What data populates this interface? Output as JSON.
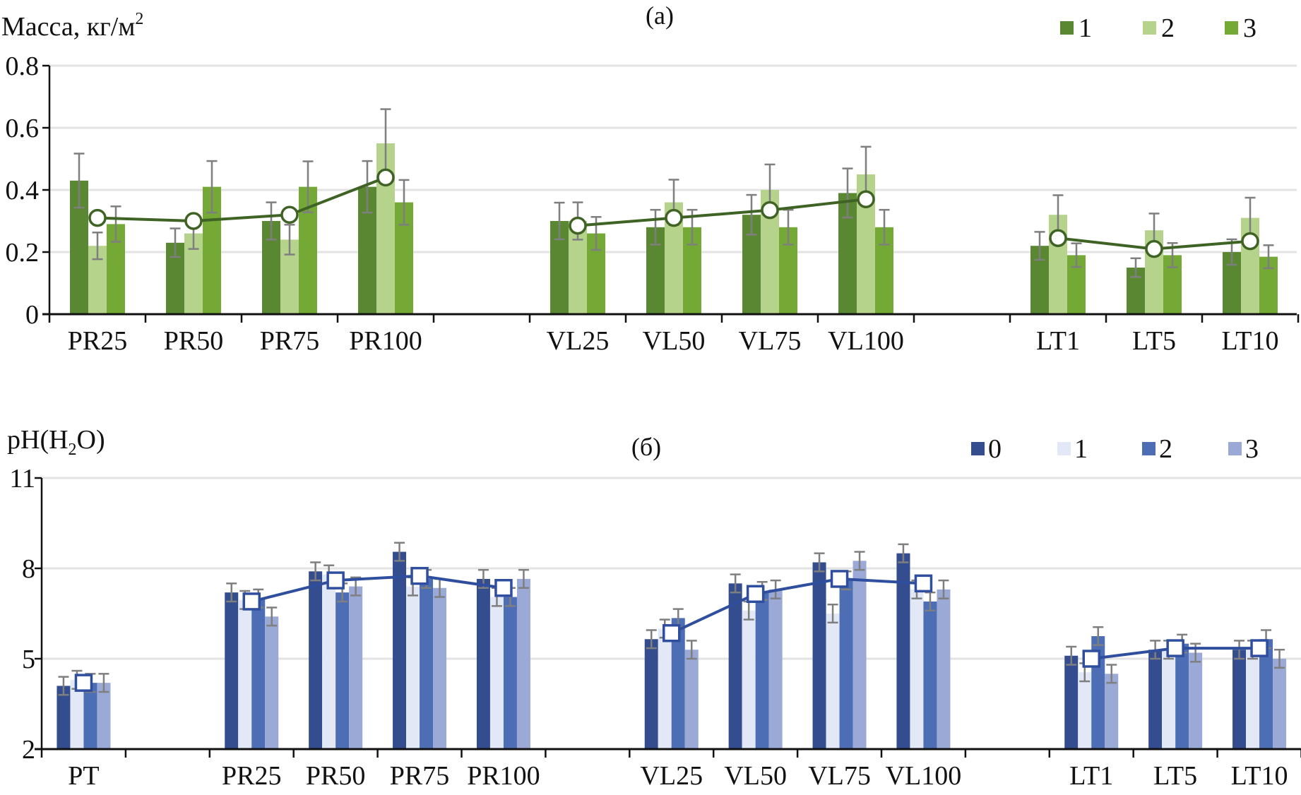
{
  "chart_data": [
    {
      "id": "a",
      "type": "bar",
      "title": "(a)",
      "ylabel": "Масса, кг/м",
      "ylabel_sup": "2",
      "xlabel": "",
      "ylim": [
        0,
        0.8
      ],
      "yticks": [
        0,
        0.2,
        0.4,
        0.6,
        0.8
      ],
      "ytick_labels": [
        "0",
        "0.2",
        "0.4",
        "0.6",
        "0.8"
      ],
      "grid": true,
      "legend_position": "top-right",
      "categories": [
        "PR25",
        "PR50",
        "PR75",
        "PR100",
        "",
        "VL25",
        "VL50",
        "VL75",
        "VL100",
        "",
        "LT1",
        "LT5",
        "LT10"
      ],
      "series": [
        {
          "name": "1",
          "color": "#5A8731",
          "values": [
            0.43,
            0.23,
            0.3,
            0.41,
            null,
            0.3,
            0.28,
            0.32,
            0.39,
            null,
            0.22,
            0.15,
            0.2
          ],
          "errors": [
            0.087,
            0.046,
            0.06,
            0.083,
            null,
            0.059,
            0.056,
            0.064,
            0.079,
            null,
            0.045,
            0.03,
            0.041
          ]
        },
        {
          "name": "2",
          "color": "#B6D38C",
          "values": [
            0.22,
            0.26,
            0.24,
            0.55,
            null,
            0.3,
            0.36,
            0.4,
            0.45,
            null,
            0.32,
            0.27,
            0.31
          ],
          "errors": [
            0.043,
            0.05,
            0.048,
            0.11,
            null,
            0.06,
            0.073,
            0.082,
            0.089,
            null,
            0.063,
            0.054,
            0.065
          ]
        },
        {
          "name": "3",
          "color": "#73A934",
          "values": [
            0.29,
            0.41,
            0.41,
            0.36,
            null,
            0.26,
            0.28,
            0.28,
            0.28,
            null,
            0.19,
            0.19,
            0.185
          ],
          "errors": [
            0.057,
            0.083,
            0.082,
            0.072,
            null,
            0.053,
            0.056,
            0.056,
            0.056,
            null,
            0.038,
            0.039,
            0.037
          ]
        }
      ],
      "mean_line": {
        "name": "mean",
        "color": "#3F6324",
        "marker": "circle",
        "segments": [
          {
            "categories": [
              "PR25",
              "PR50",
              "PR75",
              "PR100"
            ],
            "values": [
              0.31,
              0.3,
              0.32,
              0.44
            ]
          },
          {
            "categories": [
              "VL25",
              "VL50",
              "VL75",
              "VL100"
            ],
            "values": [
              0.285,
              0.31,
              0.335,
              0.37
            ]
          },
          {
            "categories": [
              "LT1",
              "LT5",
              "LT10"
            ],
            "values": [
              0.245,
              0.21,
              0.235
            ]
          }
        ]
      }
    },
    {
      "id": "b",
      "type": "bar",
      "title": "(б)",
      "ylabel": "pH(H",
      "ylabel_sub": "2",
      "ylabel_tail": "O)",
      "xlabel": "",
      "ylim": [
        2,
        11
      ],
      "yticks": [
        2,
        5,
        8,
        11
      ],
      "ytick_labels": [
        "2",
        "5",
        "8",
        "11"
      ],
      "grid": true,
      "legend_position": "top-right",
      "categories": [
        "PT",
        "",
        "PR25",
        "PR50",
        "PR75",
        "PR100",
        "",
        "VL25",
        "VL50",
        "VL75",
        "VL100",
        "",
        "LT1",
        "LT5",
        "LT10"
      ],
      "series": [
        {
          "name": "0",
          "color": "#344D8E",
          "values": [
            4.1,
            null,
            7.2,
            7.9,
            8.55,
            7.65,
            null,
            5.65,
            7.5,
            8.2,
            8.5,
            null,
            5.1,
            5.3,
            5.3
          ],
          "errors": [
            0.3,
            null,
            0.3,
            0.3,
            0.3,
            0.3,
            null,
            0.3,
            0.3,
            0.3,
            0.3,
            null,
            0.3,
            0.3,
            0.3
          ]
        },
        {
          "name": "1",
          "color": "#E2E8F6",
          "values": [
            4.3,
            null,
            6.95,
            7.8,
            7.4,
            7.05,
            null,
            6.0,
            6.6,
            6.5,
            7.3,
            null,
            4.55,
            5.3,
            5.3
          ],
          "errors": [
            0.3,
            null,
            0.3,
            0.3,
            0.3,
            0.3,
            null,
            0.3,
            0.3,
            0.3,
            0.3,
            null,
            0.3,
            0.3,
            0.3
          ]
        },
        {
          "name": "2",
          "color": "#4D6EB5",
          "values": [
            4.2,
            null,
            7.0,
            7.2,
            7.65,
            7.05,
            null,
            6.35,
            7.25,
            7.6,
            6.9,
            null,
            5.75,
            5.5,
            5.65
          ],
          "errors": [
            0.3,
            null,
            0.3,
            0.3,
            0.3,
            0.3,
            null,
            0.3,
            0.3,
            0.3,
            0.3,
            null,
            0.3,
            0.3,
            0.3
          ]
        },
        {
          "name": "3",
          "color": "#9AA9D6",
          "values": [
            4.2,
            null,
            6.4,
            7.4,
            7.35,
            7.65,
            null,
            5.3,
            7.3,
            8.25,
            7.3,
            null,
            4.5,
            5.2,
            5.0
          ],
          "errors": [
            0.3,
            null,
            0.3,
            0.3,
            0.3,
            0.3,
            null,
            0.3,
            0.3,
            0.3,
            0.3,
            null,
            0.3,
            0.3,
            0.3
          ]
        }
      ],
      "mean_line": {
        "name": "mean",
        "color": "#2F4F9E",
        "marker": "square",
        "segments": [
          {
            "categories": [
              "PT"
            ],
            "values": [
              4.2
            ]
          },
          {
            "categories": [
              "PR25",
              "PR50",
              "PR75",
              "PR100"
            ],
            "values": [
              6.9,
              7.6,
              7.75,
              7.35
            ]
          },
          {
            "categories": [
              "VL25",
              "VL50",
              "VL75",
              "VL100"
            ],
            "values": [
              5.85,
              7.15,
              7.65,
              7.5
            ]
          },
          {
            "categories": [
              "LT1",
              "LT5",
              "LT10"
            ],
            "values": [
              5.0,
              5.35,
              5.35
            ]
          }
        ]
      }
    }
  ]
}
